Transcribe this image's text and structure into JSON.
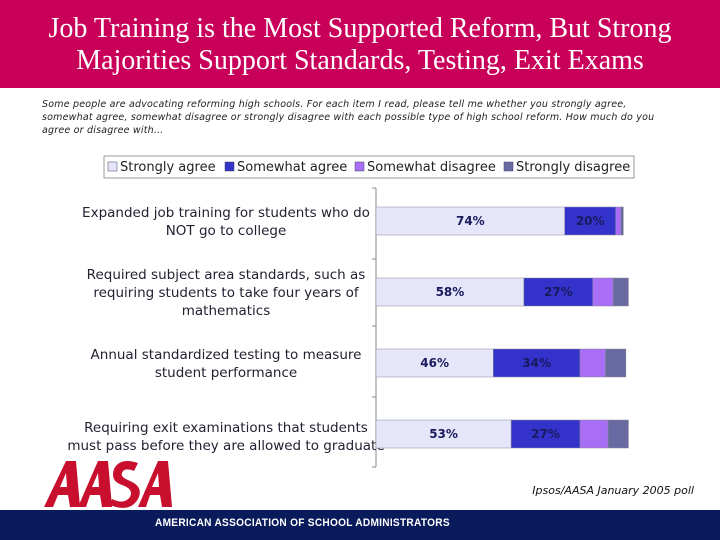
{
  "title": {
    "line1": "Job Training is the Most Supported Reform, But Strong",
    "line2": "Majorities Support Standards, Testing, Exit Exams"
  },
  "question": "Some people are advocating reforming high schools.  For each item I read, please tell me whether you strongly agree, somewhat agree, somewhat disagree or strongly disagree with each possible type of high school reform.  How much do you agree or disagree with…",
  "source": "Ipsos/AASA January 2005 poll",
  "footer": {
    "organization": "AMERICAN ASSOCIATION OF SCHOOL ADMINISTRATORS",
    "logo_text": "AASA"
  },
  "chart_data": {
    "type": "bar",
    "orientation": "horizontal",
    "stacked": true,
    "legend_position": "top",
    "xlim": [
      0,
      100
    ],
    "categories": [
      [
        "Expanded job training for students who do",
        "NOT go to college"
      ],
      [
        "Required subject area standards, such as",
        "requiring students to take four years of",
        "mathematics"
      ],
      [
        "Annual standardized testing to measure",
        "student performance"
      ],
      [
        "Requiring exit examinations that students",
        "must pass before they are allowed to graduate"
      ]
    ],
    "series": [
      {
        "name": "Strongly agree",
        "color": "#e6e6fa",
        "values": [
          74,
          58,
          46,
          53
        ],
        "labels": [
          "74%",
          "58%",
          "46%",
          "53%"
        ]
      },
      {
        "name": "Somewhat agree",
        "color": "#3333cc",
        "values": [
          20,
          27,
          34,
          27
        ],
        "labels": [
          "20%",
          "27%",
          "34%",
          "27%"
        ]
      },
      {
        "name": "Somewhat disagree",
        "color": "#a86ef5",
        "values": [
          2,
          8,
          10,
          11
        ],
        "labels": [
          "",
          "",
          "",
          ""
        ]
      },
      {
        "name": "Strongly disagree",
        "color": "#6a6aa3",
        "values": [
          1,
          6,
          8,
          8
        ],
        "labels": [
          "",
          "",
          "",
          ""
        ]
      }
    ]
  }
}
